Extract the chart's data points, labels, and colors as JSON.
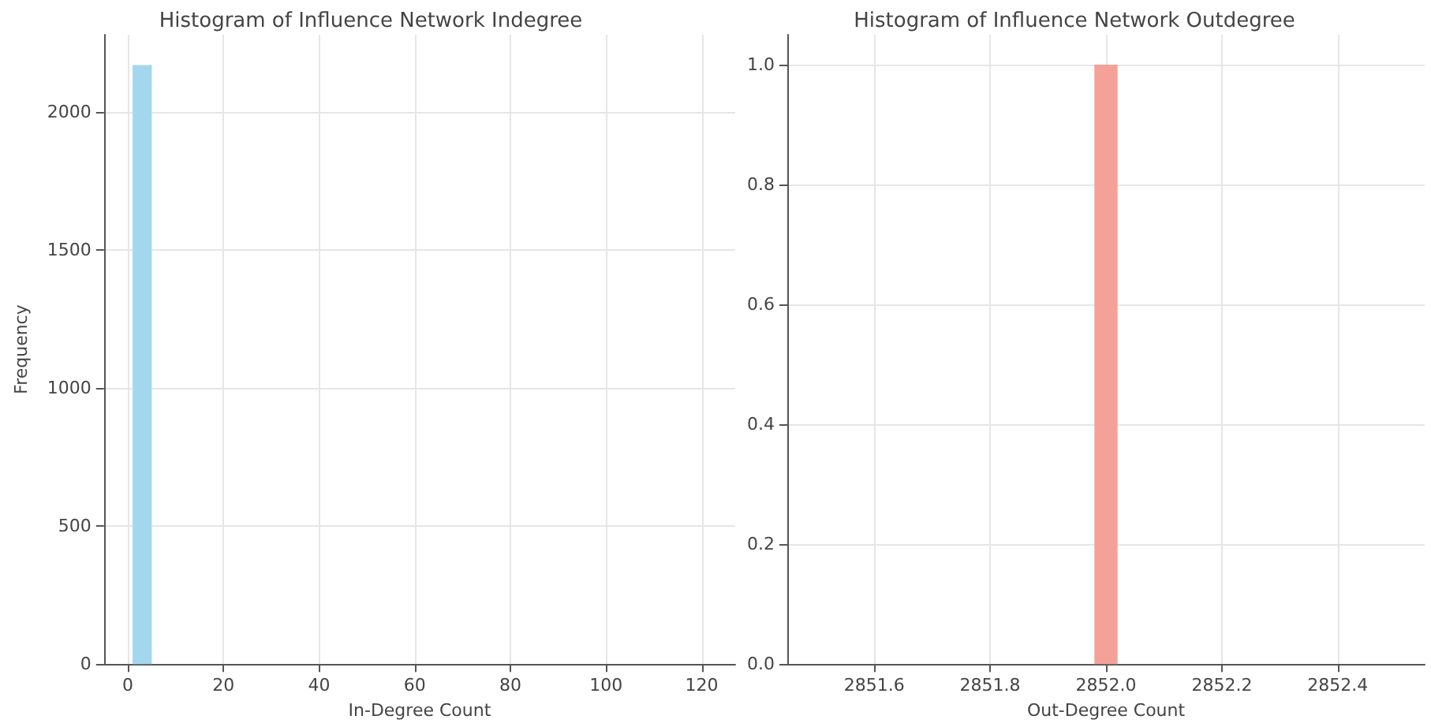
{
  "chart_data": [
    {
      "type": "histogram",
      "title": "Histogram of Influence Network Indegree",
      "xlabel": "In-Degree Count",
      "ylabel": "Frequency",
      "color": "#a3d7ee",
      "bins": [
        1,
        5,
        9,
        13,
        17,
        21,
        25,
        29,
        33,
        37,
        41,
        45,
        49,
        53,
        57,
        61,
        65,
        69,
        73,
        77,
        81,
        85,
        89,
        93,
        97,
        101,
        105,
        109,
        113,
        117,
        121
      ],
      "values": [
        2170,
        0,
        0,
        0,
        0,
        0,
        0,
        0,
        0,
        0,
        0,
        0,
        0,
        0,
        0,
        0,
        0,
        0,
        0,
        0,
        0,
        0,
        0,
        0,
        0,
        0,
        0,
        0,
        0,
        0
      ],
      "xlim": [
        -5,
        127
      ],
      "ylim": [
        0,
        2280
      ],
      "xticks": [
        0,
        20,
        40,
        60,
        80,
        100,
        120
      ],
      "yticks": [
        0,
        500,
        1000,
        1500,
        2000
      ],
      "grid": true
    },
    {
      "type": "histogram",
      "title": "Histogram of Influence Network Outdegree",
      "xlabel": "Out-Degree Count",
      "color": "#f4a198",
      "bins": [
        2851.98,
        2852.02
      ],
      "values": [
        1
      ],
      "xlim": [
        2851.45,
        2852.55
      ],
      "ylim": [
        0,
        1.05
      ],
      "xticks": [
        2851.6,
        2851.8,
        {
          "value": 2852,
          "label": "2852.0"
        },
        2852.2,
        2852.4
      ],
      "yticks": [
        {
          "value": 0,
          "label": "0.0"
        },
        0.2,
        0.4,
        0.6,
        0.8,
        {
          "value": 1,
          "label": "1.0"
        }
      ],
      "grid": true
    }
  ]
}
